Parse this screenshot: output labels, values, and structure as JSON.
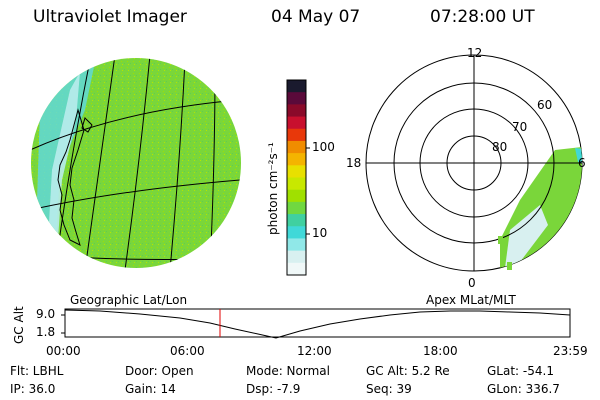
{
  "header": {
    "instrument": "Ultraviolet Imager",
    "date": "04 May 07",
    "time": "07:28:00 UT"
  },
  "colorbar": {
    "label": "photon cm⁻²s⁻¹",
    "ticks": [
      "100",
      "10"
    ],
    "colors": [
      "#1a1a2e",
      "#5a0a3a",
      "#8a0a2a",
      "#c8102e",
      "#e8380a",
      "#f08c00",
      "#f4b400",
      "#e8e000",
      "#c8e800",
      "#a0e000",
      "#70d840",
      "#40d0a0",
      "#40d8d8",
      "#90e8e8",
      "#d8f0f0",
      "#f0f8f8"
    ]
  },
  "left_map": {
    "label": "Geographic Lat/Lon",
    "fill": "#7ad63a"
  },
  "right_map": {
    "label": "Apex MLat/MLT",
    "mlt_labels": [
      "12",
      "18",
      "6",
      "0"
    ],
    "mlat_labels": [
      "60",
      "70",
      "80"
    ]
  },
  "gc_alt_plot": {
    "axis_label": "GC Alt",
    "y_ticks": [
      "9.0",
      "1.8"
    ],
    "x_ticks": [
      "00:00",
      "06:00",
      "12:00",
      "18:00",
      "23:59"
    ],
    "marker_color": "#e00000"
  },
  "info": {
    "filter": "Flt: LBHL",
    "door": "Door: Open",
    "mode": "Mode: Normal",
    "gc_alt": "GC Alt: 5.2 Re",
    "glat": "GLat: -54.1",
    "ip": "IP: 36.0",
    "gain": "Gain: 14",
    "dsp": "Dsp:   -7.9",
    "seq": "Seq: 39",
    "glon": "GLon: 336.7"
  }
}
